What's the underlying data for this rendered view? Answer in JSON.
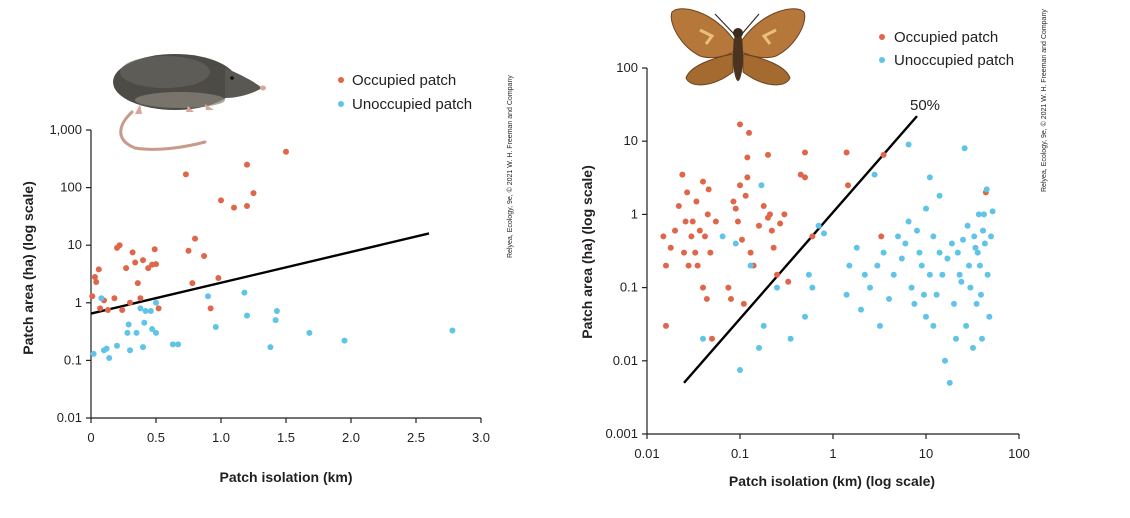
{
  "chart_data": [
    {
      "type": "scatter",
      "subject": "shrew",
      "xlabel": "Patch isolation (km)",
      "ylabel": "Patch area (ha) (log scale)",
      "x_scale": "linear",
      "y_scale": "log",
      "xlim": [
        0,
        3.0
      ],
      "ylim": [
        0.01,
        1000
      ],
      "x_ticks": [
        "0",
        "0.5",
        "1.0",
        "1.5",
        "2.0",
        "2.5",
        "3.0"
      ],
      "y_ticks": [
        "0.01",
        "0.1",
        "1",
        "10",
        "100",
        "1,000"
      ],
      "legend_position": "top-right",
      "credit": "Relyea, Ecology, 9e, © 2021 W. H. Freeman and Company",
      "series": [
        {
          "name": "Occupied patch",
          "color": "#e0664a",
          "points": [
            [
              0.01,
              1.3
            ],
            [
              0.03,
              2.8
            ],
            [
              0.04,
              2.3
            ],
            [
              0.06,
              3.8
            ],
            [
              0.07,
              0.8
            ],
            [
              0.1,
              1.1
            ],
            [
              0.13,
              0.75
            ],
            [
              0.18,
              1.2
            ],
            [
              0.2,
              9
            ],
            [
              0.22,
              10
            ],
            [
              0.24,
              0.75
            ],
            [
              0.27,
              4
            ],
            [
              0.3,
              1
            ],
            [
              0.32,
              7.5
            ],
            [
              0.34,
              5
            ],
            [
              0.36,
              2.2
            ],
            [
              0.38,
              1.2
            ],
            [
              0.4,
              5.5
            ],
            [
              0.44,
              4
            ],
            [
              0.47,
              4.6
            ],
            [
              0.49,
              8.5
            ],
            [
              0.5,
              4.7
            ],
            [
              0.52,
              0.8
            ],
            [
              0.73,
              170
            ],
            [
              0.75,
              8
            ],
            [
              0.78,
              2.2
            ],
            [
              0.8,
              13
            ],
            [
              0.87,
              6.5
            ],
            [
              0.92,
              0.8
            ],
            [
              0.98,
              2.7
            ],
            [
              1.0,
              60
            ],
            [
              1.1,
              45
            ],
            [
              1.2,
              250
            ],
            [
              1.2,
              48
            ],
            [
              1.25,
              80
            ],
            [
              1.5,
              420
            ]
          ]
        },
        {
          "name": "Unoccupied patch",
          "color": "#5fc4e8",
          "points": [
            [
              0.02,
              0.13
            ],
            [
              0.08,
              1.2
            ],
            [
              0.1,
              0.15
            ],
            [
              0.12,
              0.16
            ],
            [
              0.14,
              0.11
            ],
            [
              0.2,
              0.18
            ],
            [
              0.28,
              0.3
            ],
            [
              0.29,
              0.42
            ],
            [
              0.3,
              0.15
            ],
            [
              0.35,
              0.3
            ],
            [
              0.38,
              0.8
            ],
            [
              0.4,
              0.17
            ],
            [
              0.41,
              0.45
            ],
            [
              0.42,
              0.72
            ],
            [
              0.46,
              0.72
            ],
            [
              0.47,
              0.35
            ],
            [
              0.5,
              1.0
            ],
            [
              0.5,
              0.3
            ],
            [
              0.63,
              0.19
            ],
            [
              0.67,
              0.19
            ],
            [
              0.9,
              1.3
            ],
            [
              0.96,
              0.38
            ],
            [
              1.18,
              1.5
            ],
            [
              1.2,
              0.6
            ],
            [
              1.38,
              0.17
            ],
            [
              1.42,
              0.5
            ],
            [
              1.43,
              0.72
            ],
            [
              1.68,
              0.3
            ],
            [
              1.95,
              0.22
            ],
            [
              2.78,
              0.33
            ]
          ]
        }
      ],
      "fit_line": {
        "from": [
          0,
          0.65
        ],
        "to": [
          2.6,
          16
        ]
      }
    },
    {
      "type": "scatter",
      "subject": "butterfly",
      "xlabel": "Patch isolation (km) (log scale)",
      "ylabel": "Patch area (ha) (log scale)",
      "x_scale": "log",
      "y_scale": "log",
      "xlim": [
        0.01,
        100
      ],
      "ylim": [
        0.001,
        100
      ],
      "x_ticks": [
        "0.01",
        "0.1",
        "1",
        "10",
        "100"
      ],
      "y_ticks": [
        "0.001",
        "0.01",
        "0.1",
        "1",
        "10",
        "100"
      ],
      "legend_position": "top-right",
      "credit": "Relyea, Ecology, 9e, © 2021 W. H. Freeman and Company",
      "annotation": "50%",
      "series": [
        {
          "name": "Occupied patch",
          "color": "#e0664a",
          "points": [
            [
              0.015,
              0.5
            ],
            [
              0.016,
              0.03
            ],
            [
              0.016,
              0.2
            ],
            [
              0.018,
              0.35
            ],
            [
              0.02,
              0.6
            ],
            [
              0.022,
              1.3
            ],
            [
              0.024,
              3.5
            ],
            [
              0.025,
              0.3
            ],
            [
              0.026,
              0.8
            ],
            [
              0.027,
              2.0
            ],
            [
              0.028,
              0.2
            ],
            [
              0.03,
              0.5
            ],
            [
              0.031,
              0.8
            ],
            [
              0.033,
              0.3
            ],
            [
              0.034,
              1.5
            ],
            [
              0.035,
              0.2
            ],
            [
              0.037,
              0.6
            ],
            [
              0.04,
              0.1
            ],
            [
              0.04,
              2.8
            ],
            [
              0.042,
              0.5
            ],
            [
              0.044,
              0.07
            ],
            [
              0.045,
              1.0
            ],
            [
              0.046,
              2.2
            ],
            [
              0.048,
              0.3
            ],
            [
              0.05,
              0.02
            ],
            [
              0.055,
              0.8
            ],
            [
              0.075,
              0.1
            ],
            [
              0.08,
              0.07
            ],
            [
              0.085,
              1.5
            ],
            [
              0.09,
              1.2
            ],
            [
              0.095,
              0.8
            ],
            [
              0.1,
              17
            ],
            [
              0.1,
              2.5
            ],
            [
              0.105,
              0.45
            ],
            [
              0.11,
              0.06
            ],
            [
              0.115,
              1.8
            ],
            [
              0.12,
              3.2
            ],
            [
              0.12,
              6.0
            ],
            [
              0.125,
              13
            ],
            [
              0.13,
              0.3
            ],
            [
              0.14,
              0.2
            ],
            [
              0.16,
              0.7
            ],
            [
              0.18,
              1.3
            ],
            [
              0.2,
              0.9
            ],
            [
              0.2,
              6.5
            ],
            [
              0.21,
              1.0
            ],
            [
              0.22,
              0.6
            ],
            [
              0.23,
              0.35
            ],
            [
              0.25,
              0.15
            ],
            [
              0.27,
              0.75
            ],
            [
              0.3,
              1.0
            ],
            [
              0.33,
              0.12
            ],
            [
              0.45,
              3.5
            ],
            [
              0.5,
              3.2
            ],
            [
              0.5,
              7
            ],
            [
              0.6,
              0.5
            ],
            [
              1.4,
              7
            ],
            [
              1.45,
              2.5
            ],
            [
              3.3,
              0.5
            ],
            [
              3.5,
              6.5
            ],
            [
              44,
              2
            ]
          ]
        },
        {
          "name": "Unoccupied patch",
          "color": "#5fc4e8",
          "points": [
            [
              0.04,
              0.02
            ],
            [
              0.065,
              0.5
            ],
            [
              0.09,
              0.4
            ],
            [
              0.1,
              0.0075
            ],
            [
              0.13,
              0.2
            ],
            [
              0.16,
              0.015
            ],
            [
              0.17,
              2.5
            ],
            [
              0.18,
              0.03
            ],
            [
              0.25,
              0.1
            ],
            [
              0.35,
              0.02
            ],
            [
              0.5,
              0.04
            ],
            [
              0.55,
              0.15
            ],
            [
              0.6,
              0.1
            ],
            [
              0.7,
              0.7
            ],
            [
              0.8,
              0.55
            ],
            [
              1.4,
              0.08
            ],
            [
              1.5,
              0.2
            ],
            [
              1.8,
              0.35
            ],
            [
              2.0,
              0.05
            ],
            [
              2.2,
              0.15
            ],
            [
              2.5,
              0.1
            ],
            [
              2.8,
              3.5
            ],
            [
              3.0,
              0.2
            ],
            [
              3.2,
              0.03
            ],
            [
              3.5,
              0.3
            ],
            [
              4.0,
              0.07
            ],
            [
              4.5,
              0.15
            ],
            [
              5.0,
              0.5
            ],
            [
              5.5,
              0.25
            ],
            [
              6.0,
              0.4
            ],
            [
              6.5,
              9
            ],
            [
              6.5,
              0.8
            ],
            [
              7.0,
              0.1
            ],
            [
              7.5,
              0.06
            ],
            [
              8.0,
              0.6
            ],
            [
              8.5,
              0.3
            ],
            [
              9.0,
              0.2
            ],
            [
              9.5,
              0.08
            ],
            [
              10,
              1.2
            ],
            [
              10,
              0.04
            ],
            [
              11,
              0.15
            ],
            [
              11,
              3.2
            ],
            [
              12,
              0.5
            ],
            [
              12,
              0.03
            ],
            [
              13,
              0.08
            ],
            [
              14,
              1.8
            ],
            [
              14,
              0.3
            ],
            [
              15,
              0.15
            ],
            [
              16,
              0.01
            ],
            [
              17,
              0.25
            ],
            [
              18,
              0.005
            ],
            [
              19,
              0.4
            ],
            [
              20,
              0.06
            ],
            [
              21,
              0.02
            ],
            [
              22,
              0.3
            ],
            [
              23,
              0.15
            ],
            [
              24,
              0.12
            ],
            [
              25,
              0.45
            ],
            [
              26,
              8
            ],
            [
              27,
              0.03
            ],
            [
              28,
              0.7
            ],
            [
              29,
              0.2
            ],
            [
              30,
              0.1
            ],
            [
              32,
              0.015
            ],
            [
              33,
              0.5
            ],
            [
              34,
              0.35
            ],
            [
              35,
              0.06
            ],
            [
              36,
              0.3
            ],
            [
              37,
              1.0
            ],
            [
              38,
              0.2
            ],
            [
              39,
              0.08
            ],
            [
              40,
              0.02
            ],
            [
              41,
              0.6
            ],
            [
              42,
              1.0
            ],
            [
              43,
              0.4
            ],
            [
              45,
              2.2
            ],
            [
              46,
              0.15
            ],
            [
              48,
              0.04
            ],
            [
              50,
              0.5
            ],
            [
              52,
              1.1
            ]
          ]
        }
      ],
      "fit_line": {
        "from": [
          0.025,
          0.005
        ],
        "to": [
          8,
          22
        ]
      }
    }
  ]
}
